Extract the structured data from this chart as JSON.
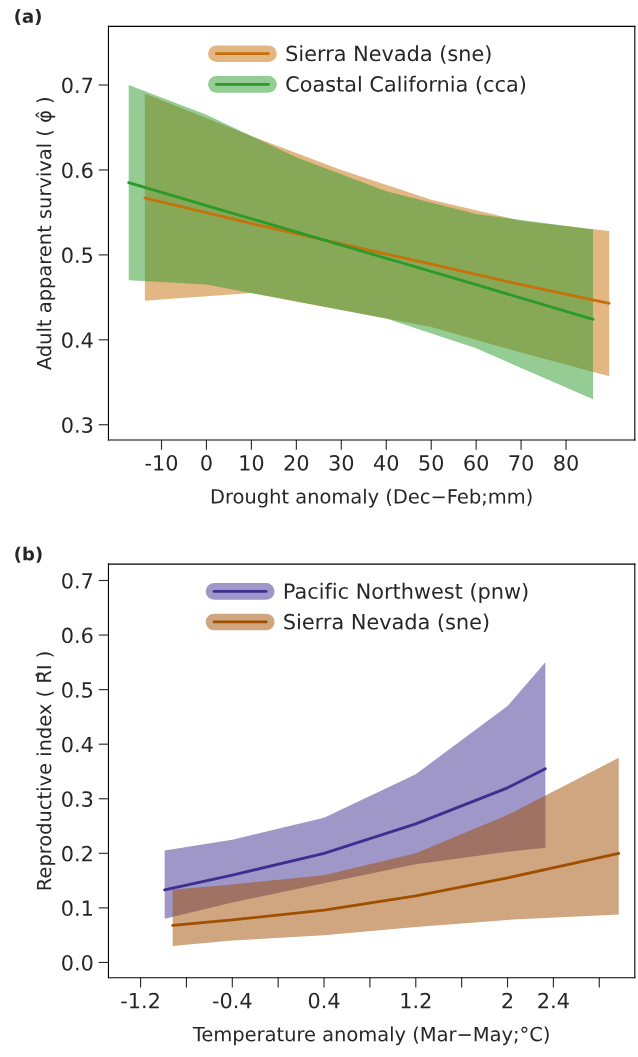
{
  "chart_data": [
    {
      "type": "line",
      "title": "(a)",
      "xlabel": "Drought anomaly (Dec−Feb;mm)",
      "ylabel": "Adult apparent survival ( φ̂ )",
      "xlim": [
        -21.8,
        95.3
      ],
      "ylim": [
        0.282,
        0.769
      ],
      "xticks": [
        -10,
        0,
        10,
        20,
        30,
        40,
        50,
        60,
        70,
        80
      ],
      "yticks": [
        0.3,
        0.4,
        0.5,
        0.6,
        0.7
      ],
      "legend": "top",
      "grid": false,
      "series": [
        {
          "name": "Sierra Nevada (sne)",
          "color": "#c8700a",
          "x": [
            -13.7,
            10,
            30,
            50,
            70,
            89.6
          ],
          "values": [
            0.567,
            0.537,
            0.513,
            0.489,
            0.465,
            0.443
          ],
          "lower": [
            0.446,
            0.455,
            0.435,
            0.415,
            0.385,
            0.357
          ],
          "upper": [
            0.69,
            0.64,
            0.6,
            0.565,
            0.54,
            0.528
          ]
        },
        {
          "name": "Coastal California (cca)",
          "color": "#2a9a2a",
          "x": [
            -17.3,
            0,
            20,
            40,
            60,
            86
          ],
          "values": [
            0.585,
            0.558,
            0.527,
            0.496,
            0.465,
            0.424
          ],
          "lower": [
            0.47,
            0.465,
            0.445,
            0.425,
            0.39,
            0.33
          ],
          "upper": [
            0.7,
            0.665,
            0.615,
            0.575,
            0.548,
            0.53
          ]
        }
      ]
    },
    {
      "type": "line",
      "title": "(b)",
      "xlabel": "Temperature anomaly (Mar−May;°C)",
      "ylabel": "Reproductive index ( R̂I )",
      "xlim": [
        -1.48,
        3.11
      ],
      "ylim": [
        -0.028,
        0.73
      ],
      "xticks": [
        -1.2,
        {
          "value": -0.8,
          "label": null
        },
        -0.4,
        {
          "value": 0,
          "label": null
        },
        0.4,
        {
          "value": 0.8,
          "label": null
        },
        1.2,
        {
          "value": 1.6,
          "label": null
        },
        2,
        2.4,
        {
          "value": 2.8,
          "label": null
        }
      ],
      "yticks": [
        {
          "value": 0,
          "label": "0.0"
        },
        0.1,
        0.2,
        0.3,
        0.4,
        0.5,
        0.6,
        0.7
      ],
      "legend": "top",
      "grid": false,
      "series": [
        {
          "name": "Pacific Northwest (pnw)",
          "color": "#3d2f8f",
          "x": [
            -0.99,
            -0.4,
            0.4,
            1.2,
            2.0,
            2.33
          ],
          "values": [
            0.133,
            0.16,
            0.2,
            0.254,
            0.32,
            0.355
          ],
          "lower": [
            0.08,
            0.11,
            0.145,
            0.18,
            0.203,
            0.21
          ],
          "upper": [
            0.205,
            0.225,
            0.265,
            0.345,
            0.47,
            0.55
          ]
        },
        {
          "name": "Sierra Nevada (sne)",
          "color": "#a04e00",
          "x": [
            -0.92,
            -0.4,
            0.4,
            1.2,
            2.0,
            2.97
          ],
          "values": [
            0.068,
            0.078,
            0.096,
            0.122,
            0.155,
            0.2
          ],
          "lower": [
            0.03,
            0.04,
            0.05,
            0.065,
            0.078,
            0.088
          ],
          "upper": [
            0.133,
            0.143,
            0.16,
            0.2,
            0.27,
            0.375
          ]
        }
      ]
    }
  ]
}
